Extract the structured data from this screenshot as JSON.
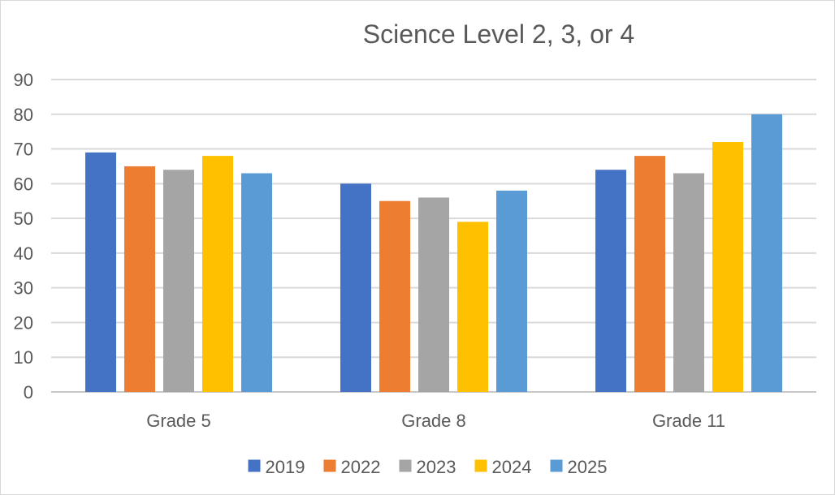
{
  "chart_data": {
    "type": "bar",
    "title": "Science Level 2, 3, or 4",
    "xlabel": "",
    "ylabel": "",
    "ylim": [
      0,
      90
    ],
    "ytick_step": 10,
    "yticks": [
      "0",
      "10",
      "20",
      "30",
      "40",
      "50",
      "60",
      "70",
      "80",
      "90"
    ],
    "categories": [
      "Grade 5",
      "Grade 8",
      "Grade 11"
    ],
    "series": [
      {
        "name": "2019",
        "color": "#4472C4",
        "values": [
          69,
          60,
          64
        ]
      },
      {
        "name": "2022",
        "color": "#ED7D31",
        "values": [
          65,
          55,
          68
        ]
      },
      {
        "name": "2023",
        "color": "#A5A5A5",
        "values": [
          64,
          56,
          63
        ]
      },
      {
        "name": "2024",
        "color": "#FFC000",
        "values": [
          68,
          49,
          72
        ]
      },
      {
        "name": "2025",
        "color": "#5B9BD5",
        "values": [
          63,
          58,
          80
        ]
      }
    ],
    "grid": true,
    "legend_position": "bottom"
  }
}
